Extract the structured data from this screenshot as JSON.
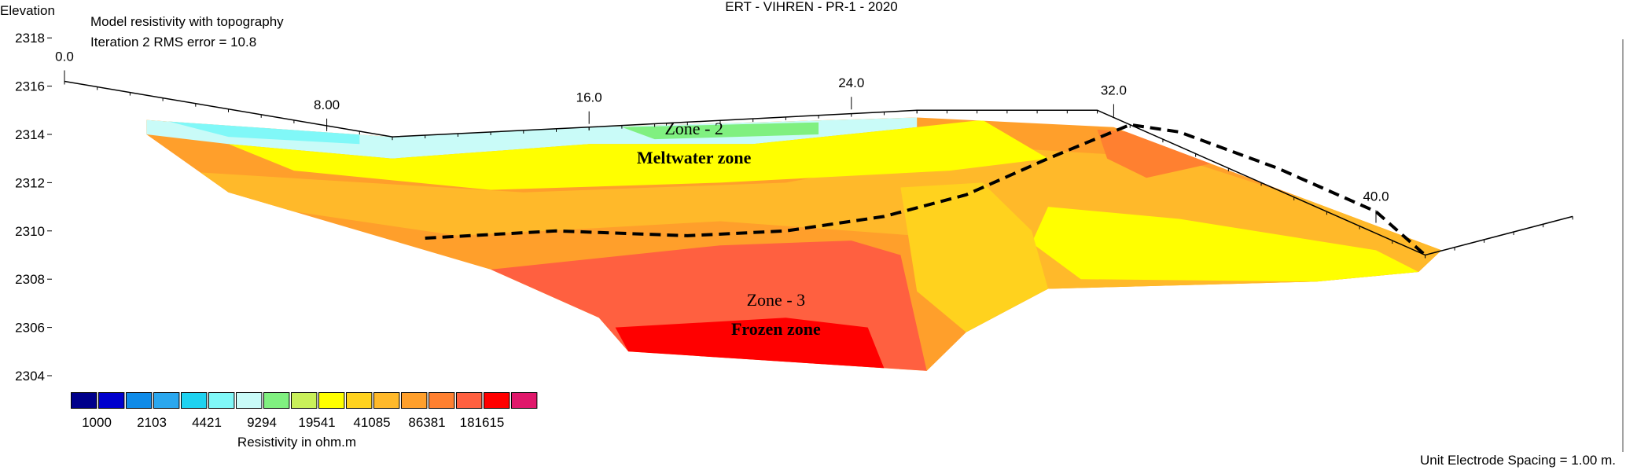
{
  "chart_data": {
    "type": "heatmap",
    "title": "ERT - VIHREN - PR-1 - 2020",
    "subtitle_lines": [
      "Model resistivity with topography",
      "Iteration 2 RMS error = 10.8"
    ],
    "ylabel": "Elevation",
    "ylim": [
      2304,
      2318
    ],
    "y_ticks": [
      "2318",
      "2316",
      "2314",
      "2312",
      "2310",
      "2308",
      "2306",
      "2304"
    ],
    "xlim": [
      0,
      48
    ],
    "x_ticks": [
      {
        "x": 0,
        "label": "0.0",
        "elev": 2316.2
      },
      {
        "x": 8,
        "label": "8.00",
        "elev": 2314.2
      },
      {
        "x": 16,
        "label": "16.0",
        "elev": 2314.5
      },
      {
        "x": 24,
        "label": "24.0",
        "elev": 2315.1
      },
      {
        "x": 32,
        "label": "32.0",
        "elev": 2314.8
      },
      {
        "x": 40,
        "label": "40.0",
        "elev": 2310.4
      }
    ],
    "topography": [
      [
        0,
        2316.2
      ],
      [
        10,
        2313.9
      ],
      [
        16,
        2314.3
      ],
      [
        26,
        2315.0
      ],
      [
        31.5,
        2315.0
      ],
      [
        41.5,
        2309.0
      ],
      [
        46,
        2310.6
      ]
    ],
    "section_outline": [
      [
        2.5,
        2314.6
      ],
      [
        10,
        2313.9
      ],
      [
        16,
        2314.3
      ],
      [
        26,
        2314.7
      ],
      [
        32,
        2314.3
      ],
      [
        42,
        2309.2
      ],
      [
        41.3,
        2308.3
      ],
      [
        38.2,
        2307.9
      ],
      [
        30,
        2307.6
      ],
      [
        27.5,
        2305.8
      ],
      [
        26.3,
        2304.2
      ],
      [
        17.2,
        2305.0
      ],
      [
        16.3,
        2306.4
      ],
      [
        13,
        2308.4
      ],
      [
        5,
        2311.6
      ],
      [
        2.5,
        2314.0
      ]
    ],
    "regions": [
      {
        "name": "low-surface",
        "class": 6,
        "points": [
          [
            2.5,
            2314.6
          ],
          [
            10,
            2313.9
          ],
          [
            16,
            2314.3
          ],
          [
            26,
            2314.7
          ],
          [
            26,
            2314.3
          ],
          [
            21,
            2313.6
          ],
          [
            16,
            2313.6
          ],
          [
            10,
            2313.0
          ],
          [
            5,
            2313.6
          ],
          [
            2.5,
            2314.0
          ]
        ]
      },
      {
        "name": "mid-yellow",
        "class": 9,
        "points": [
          [
            5,
            2313.6
          ],
          [
            10,
            2313.0
          ],
          [
            16,
            2313.6
          ],
          [
            21,
            2313.6
          ],
          [
            26,
            2314.3
          ],
          [
            28,
            2314.6
          ],
          [
            30,
            2313.0
          ],
          [
            27,
            2312.5
          ],
          [
            20,
            2312.0
          ],
          [
            13,
            2311.7
          ],
          [
            7,
            2312.5
          ]
        ]
      },
      {
        "name": "deep-red",
        "class": 14,
        "points": [
          [
            13,
            2308.4
          ],
          [
            20,
            2309.4
          ],
          [
            24,
            2309.6
          ],
          [
            25.5,
            2309.0
          ],
          [
            26.3,
            2304.2
          ],
          [
            17.2,
            2305.0
          ],
          [
            16.3,
            2306.4
          ]
        ]
      },
      {
        "name": "frozen-core",
        "class": 15,
        "points": [
          [
            16.8,
            2306.0
          ],
          [
            22,
            2306.4
          ],
          [
            24.5,
            2306.0
          ],
          [
            25,
            2304.3
          ],
          [
            17.2,
            2305.0
          ]
        ]
      },
      {
        "name": "right-red",
        "class": 13,
        "points": [
          [
            31.5,
            2314.2
          ],
          [
            33.5,
            2314.0
          ],
          [
            35,
            2312.8
          ],
          [
            33,
            2312.2
          ],
          [
            31.8,
            2313.0
          ]
        ]
      }
    ],
    "boundary_line": [
      [
        11,
        2309.7
      ],
      [
        15,
        2310.0
      ],
      [
        19,
        2309.8
      ],
      [
        22,
        2310.0
      ],
      [
        25,
        2310.6
      ],
      [
        27.5,
        2311.5
      ],
      [
        30,
        2313.0
      ],
      [
        32.5,
        2314.4
      ],
      [
        34,
        2314.1
      ],
      [
        37,
        2312.6
      ],
      [
        40,
        2310.8
      ],
      [
        41.5,
        2309.0
      ]
    ],
    "annotations": [
      {
        "text": "Zone - 2",
        "x": 19.2,
        "y": 2314.0,
        "bold": false
      },
      {
        "text": "Meltwater  zone",
        "x": 19.2,
        "y": 2312.8,
        "bold": true
      },
      {
        "text": "Zone - 3",
        "x": 21.7,
        "y": 2306.9,
        "bold": false
      },
      {
        "text": "Frozen zone",
        "x": 21.7,
        "y": 2305.7,
        "bold": true
      }
    ],
    "legend": {
      "colors": [
        "#00008b",
        "#0000cd",
        "#0f8be8",
        "#2aa7ee",
        "#1ed2f0",
        "#80f8f8",
        "#c9fbf8",
        "#80f080",
        "#c9f05a",
        "#ffff00",
        "#ffd21e",
        "#ffb92a",
        "#ff9f2b",
        "#ff8030",
        "#ff6040",
        "#ff0000",
        "#e0186b"
      ],
      "labels": [
        "1000",
        "2103",
        "4421",
        "9294",
        "19541",
        "41085",
        "86381",
        "181615"
      ],
      "title": "Resistivity in ohm.m",
      "placement": "bottom-left"
    },
    "footnote": "Unit Electrode Spacing = 1.00 m."
  }
}
